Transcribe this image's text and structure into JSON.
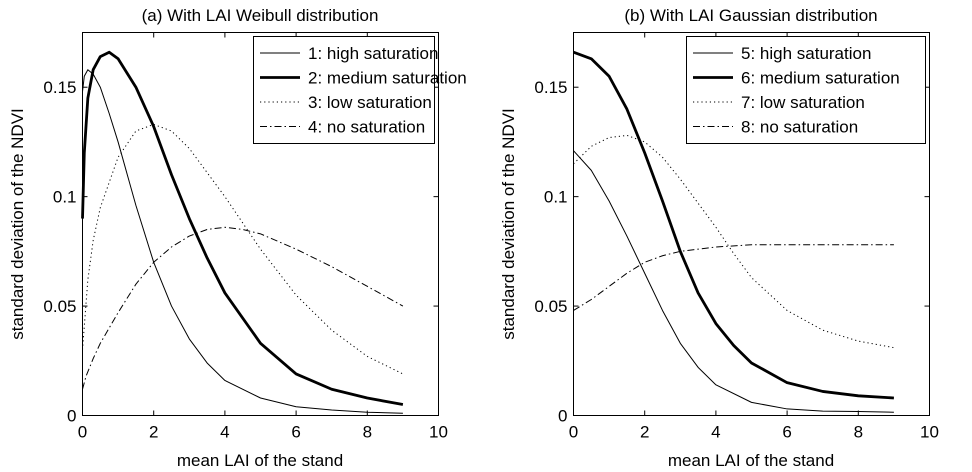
{
  "chart_data": [
    {
      "type": "line",
      "title": "(a) With LAI Weibull distribution",
      "xlabel": "mean LAI of the stand",
      "ylabel": "standard deviation of the NDVI",
      "xlim": [
        0,
        10
      ],
      "ylim": [
        0,
        0.175
      ],
      "xticks": [
        "0",
        "2",
        "4",
        "6",
        "8",
        "10"
      ],
      "yticks": [
        "0",
        "0.05",
        "0.1",
        "0.15"
      ],
      "grid": false,
      "legend_position": "top-right",
      "series": [
        {
          "name": "1: high saturation",
          "style": "thin-solid",
          "x": [
            0,
            0.05,
            0.15,
            0.3,
            0.5,
            0.75,
            1,
            1.5,
            2,
            2.5,
            3,
            3.5,
            4,
            5,
            6,
            7,
            8,
            9
          ],
          "y": [
            0.148,
            0.155,
            0.158,
            0.156,
            0.15,
            0.138,
            0.125,
            0.096,
            0.07,
            0.05,
            0.035,
            0.024,
            0.016,
            0.008,
            0.004,
            0.0025,
            0.0015,
            0.001
          ]
        },
        {
          "name": "2: medium saturation",
          "style": "thick-solid",
          "x": [
            0,
            0.05,
            0.15,
            0.3,
            0.5,
            0.75,
            1,
            1.5,
            2,
            2.5,
            3,
            3.5,
            4,
            5,
            6,
            7,
            8,
            9
          ],
          "y": [
            0.09,
            0.12,
            0.145,
            0.158,
            0.164,
            0.166,
            0.163,
            0.15,
            0.132,
            0.11,
            0.09,
            0.072,
            0.056,
            0.033,
            0.019,
            0.012,
            0.008,
            0.005
          ]
        },
        {
          "name": "3: low saturation",
          "style": "dotted",
          "x": [
            0,
            0.15,
            0.3,
            0.5,
            1,
            1.5,
            2,
            2.5,
            3,
            4,
            5,
            6,
            7,
            8,
            9
          ],
          "y": [
            0.03,
            0.062,
            0.08,
            0.095,
            0.118,
            0.13,
            0.133,
            0.13,
            0.122,
            0.1,
            0.076,
            0.055,
            0.039,
            0.027,
            0.019
          ]
        },
        {
          "name": "4: no saturation",
          "style": "dash-dot",
          "x": [
            0,
            0.1,
            0.3,
            0.5,
            1,
            1.5,
            2,
            2.5,
            3,
            3.5,
            4,
            4.5,
            5,
            6,
            7,
            8,
            9
          ],
          "y": [
            0.012,
            0.018,
            0.026,
            0.033,
            0.047,
            0.06,
            0.07,
            0.077,
            0.082,
            0.085,
            0.086,
            0.085,
            0.083,
            0.076,
            0.068,
            0.059,
            0.05
          ]
        }
      ]
    },
    {
      "type": "line",
      "title": "(b) With LAI Gaussian distribution",
      "xlabel": "mean LAI of the stand",
      "ylabel": "standard deviation of the NDVI",
      "xlim": [
        0,
        10
      ],
      "ylim": [
        0,
        0.175
      ],
      "xticks": [
        "0",
        "2",
        "4",
        "6",
        "8",
        "10"
      ],
      "yticks": [
        "0",
        "0.05",
        "0.1",
        "0.15"
      ],
      "grid": false,
      "legend_position": "top-right",
      "series": [
        {
          "name": "5: high saturation",
          "style": "thin-solid",
          "x": [
            0,
            0.5,
            1,
            1.5,
            2,
            2.5,
            3,
            3.5,
            4,
            5,
            6,
            7,
            8,
            9
          ],
          "y": [
            0.121,
            0.112,
            0.098,
            0.082,
            0.065,
            0.048,
            0.033,
            0.022,
            0.014,
            0.006,
            0.003,
            0.002,
            0.0018,
            0.0015
          ]
        },
        {
          "name": "6: medium saturation",
          "style": "thick-solid",
          "x": [
            0,
            0.5,
            1,
            1.5,
            2,
            2.5,
            3,
            3.5,
            4,
            4.5,
            5,
            6,
            7,
            8,
            9
          ],
          "y": [
            0.166,
            0.163,
            0.155,
            0.14,
            0.12,
            0.098,
            0.075,
            0.056,
            0.042,
            0.032,
            0.024,
            0.015,
            0.011,
            0.009,
            0.008
          ]
        },
        {
          "name": "7: low saturation",
          "style": "dotted",
          "x": [
            0,
            0.5,
            1,
            1.5,
            2,
            2.5,
            3,
            3.5,
            4,
            4.5,
            5,
            6,
            7,
            8,
            9
          ],
          "y": [
            0.115,
            0.123,
            0.127,
            0.128,
            0.125,
            0.118,
            0.108,
            0.097,
            0.086,
            0.074,
            0.063,
            0.048,
            0.039,
            0.034,
            0.031
          ]
        },
        {
          "name": "8: no saturation",
          "style": "dash-dot",
          "x": [
            0,
            0.5,
            1,
            1.5,
            2,
            2.5,
            3,
            3.5,
            4,
            5,
            6,
            7,
            8,
            9
          ],
          "y": [
            0.048,
            0.053,
            0.059,
            0.065,
            0.07,
            0.073,
            0.075,
            0.076,
            0.077,
            0.078,
            0.078,
            0.078,
            0.078,
            0.078
          ]
        }
      ]
    }
  ]
}
